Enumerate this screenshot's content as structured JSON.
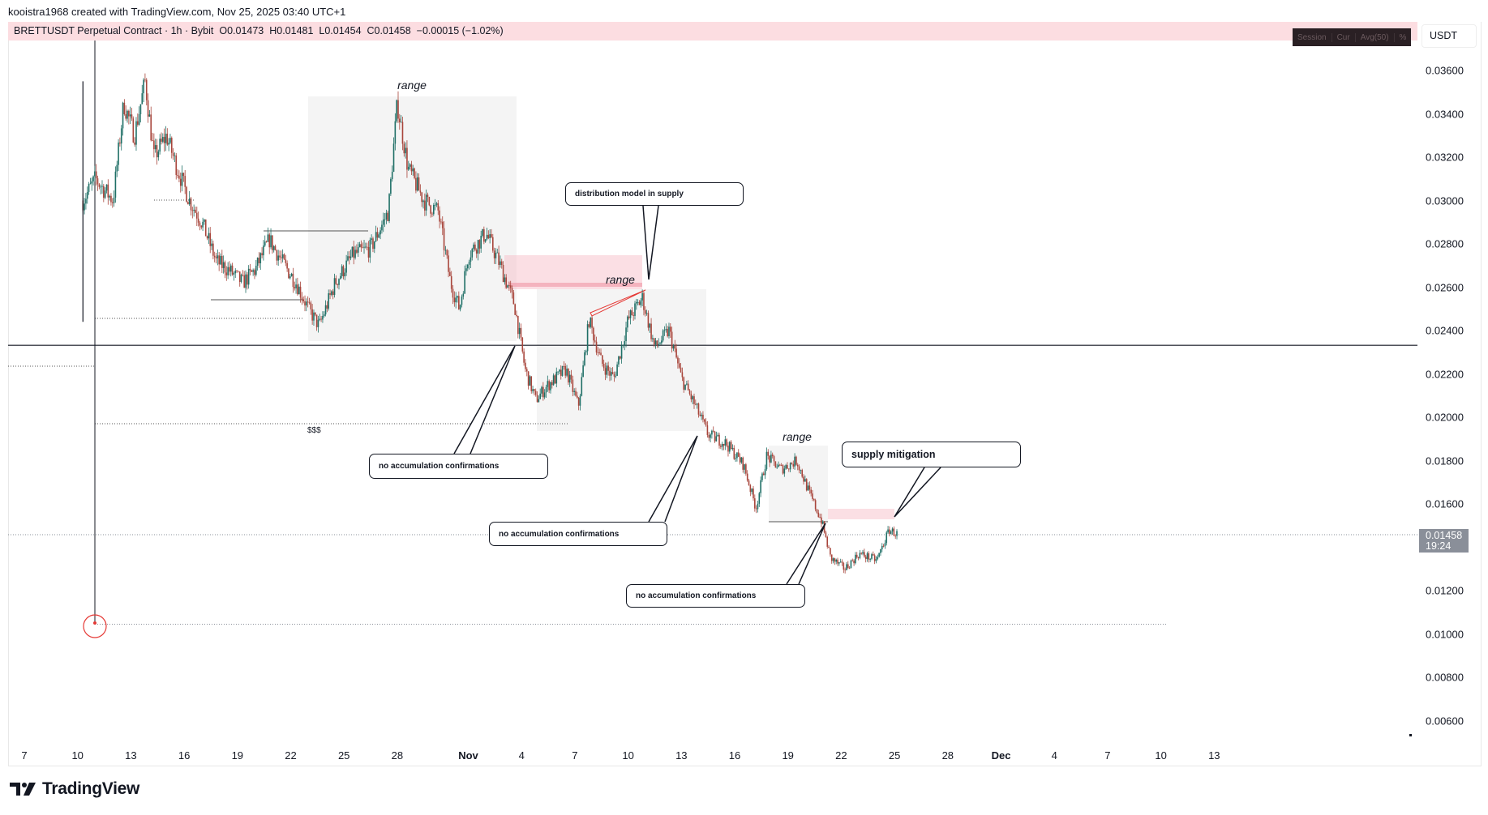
{
  "credit": "kooistra1968 created with TradingView.com, Nov 25, 2025 03:40 UTC+1",
  "legend": {
    "symbol": "BRETTUSDT Perpetual Contract · 1h · Bybit",
    "open": "O0.01473",
    "high": "H0.01481",
    "low": "L0.01454",
    "close": "C0.01458",
    "change": "−0.00015 (−1.02%)"
  },
  "indicator_tabs": [
    "Session",
    "Cur",
    "Avg(50)",
    "%"
  ],
  "currency": "USDT",
  "current_price": {
    "value": "0.01458",
    "countdown": "19:24"
  },
  "logo_text": "TradingView",
  "annotations": {
    "range_labels": [
      "range",
      "range",
      "range"
    ],
    "dollar_marker": "$$$",
    "callouts": {
      "distribution": "distribution model in supply",
      "no_accum_1": "no accumulation confirmations",
      "no_accum_2": "no accumulation confirmations",
      "no_accum_3": "no accumulation confirmations",
      "supply_mitigation": "supply mitigation"
    }
  },
  "colors": {
    "up": "#1f6f66",
    "down": "#a8453b",
    "supply_zone": "#f7b9c3",
    "range_box": "#c8c8c8"
  },
  "chart_data": {
    "type": "candlestick",
    "title": "BRETTUSDT Perpetual Contract · 1h · Bybit",
    "xlabel": "",
    "ylabel": "USDT",
    "ylim": [
      0.005,
      0.0375
    ],
    "y_ticks": [
      "0.03600",
      "0.03400",
      "0.03200",
      "0.03000",
      "0.02800",
      "0.02600",
      "0.02400",
      "0.02200",
      "0.02000",
      "0.01800",
      "0.01600",
      "0.01200",
      "0.01000",
      "0.00800",
      "0.00600"
    ],
    "x_ticks": [
      {
        "label": "7",
        "day": 0
      },
      {
        "label": "10",
        "day": 3
      },
      {
        "label": "13",
        "day": 6
      },
      {
        "label": "16",
        "day": 9
      },
      {
        "label": "19",
        "day": 12
      },
      {
        "label": "22",
        "day": 15
      },
      {
        "label": "25",
        "day": 18
      },
      {
        "label": "28",
        "day": 21
      },
      {
        "label": "Nov",
        "day": 25,
        "bold": true
      },
      {
        "label": "4",
        "day": 28
      },
      {
        "label": "7",
        "day": 31
      },
      {
        "label": "10",
        "day": 34
      },
      {
        "label": "13",
        "day": 37
      },
      {
        "label": "16",
        "day": 40
      },
      {
        "label": "19",
        "day": 43
      },
      {
        "label": "22",
        "day": 46
      },
      {
        "label": "25",
        "day": 49
      },
      {
        "label": "28",
        "day": 52
      },
      {
        "label": "Dec",
        "day": 55,
        "bold": true
      },
      {
        "label": "4",
        "day": 58
      },
      {
        "label": "7",
        "day": 61
      },
      {
        "label": "10",
        "day": 64
      },
      {
        "label": "13",
        "day": 67
      }
    ],
    "x_unit": "days since Oct 7, 2025",
    "price_path": [
      [
        3.3,
        0.03
      ],
      [
        4.0,
        0.031
      ],
      [
        5.0,
        0.03
      ],
      [
        5.6,
        0.0345
      ],
      [
        6.2,
        0.033
      ],
      [
        6.8,
        0.0355
      ],
      [
        7.3,
        0.032
      ],
      [
        8.0,
        0.033
      ],
      [
        8.6,
        0.0315
      ],
      [
        9.3,
        0.03
      ],
      [
        10.0,
        0.029
      ],
      [
        10.8,
        0.0272
      ],
      [
        11.5,
        0.0268
      ],
      [
        12.3,
        0.0262
      ],
      [
        13.0,
        0.0268
      ],
      [
        13.8,
        0.0282
      ],
      [
        14.5,
        0.0272
      ],
      [
        15.3,
        0.0262
      ],
      [
        16.0,
        0.025
      ],
      [
        16.6,
        0.0242
      ],
      [
        17.5,
        0.0262
      ],
      [
        18.5,
        0.0275
      ],
      [
        19.5,
        0.0278
      ],
      [
        20.5,
        0.0295
      ],
      [
        21.0,
        0.0345
      ],
      [
        21.6,
        0.0315
      ],
      [
        22.5,
        0.03
      ],
      [
        23.3,
        0.0295
      ],
      [
        24.0,
        0.0262
      ],
      [
        24.5,
        0.025
      ],
      [
        25.0,
        0.0275
      ],
      [
        26.0,
        0.0285
      ],
      [
        26.8,
        0.027
      ],
      [
        27.6,
        0.0252
      ],
      [
        28.2,
        0.0222
      ],
      [
        28.8,
        0.0208
      ],
      [
        29.5,
        0.0215
      ],
      [
        30.5,
        0.0222
      ],
      [
        31.2,
        0.0205
      ],
      [
        31.8,
        0.0245
      ],
      [
        32.5,
        0.0225
      ],
      [
        33.2,
        0.0218
      ],
      [
        34.0,
        0.0245
      ],
      [
        34.8,
        0.0255
      ],
      [
        35.5,
        0.0232
      ],
      [
        36.3,
        0.024
      ],
      [
        37.0,
        0.0218
      ],
      [
        37.8,
        0.0205
      ],
      [
        38.5,
        0.0192
      ],
      [
        39.5,
        0.0188
      ],
      [
        40.5,
        0.0178
      ],
      [
        41.2,
        0.0158
      ],
      [
        41.8,
        0.0182
      ],
      [
        42.6,
        0.0176
      ],
      [
        43.5,
        0.018
      ],
      [
        44.2,
        0.0165
      ],
      [
        44.9,
        0.0152
      ],
      [
        45.4,
        0.0135
      ],
      [
        46.2,
        0.013
      ],
      [
        47.0,
        0.0137
      ],
      [
        48.0,
        0.0134
      ],
      [
        48.7,
        0.0148
      ],
      [
        49.2,
        0.01458
      ]
    ],
    "levels": [
      {
        "name": "horizontal-level",
        "price": 0.02332
      },
      {
        "name": "current-price-line",
        "price": 0.01458
      },
      {
        "name": "low-liquidity-line",
        "price": 0.01045
      }
    ]
  }
}
